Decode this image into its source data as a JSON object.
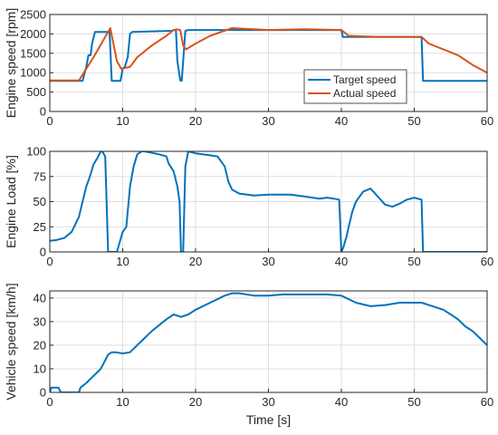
{
  "colors": {
    "target": "#0072BD",
    "actual": "#D95319",
    "grid": "#dfdfdf",
    "axis": "#262626"
  },
  "chart_data": [
    {
      "type": "line",
      "ylabel": "Engine speed [rpm]",
      "xlim": [
        0,
        60
      ],
      "ylim": [
        0,
        2500
      ],
      "xticks": [
        0,
        10,
        20,
        30,
        40,
        50,
        60
      ],
      "yticks": [
        0,
        500,
        1000,
        1500,
        2000,
        2500
      ],
      "grid": true,
      "legend": {
        "placement": "bottom-right-inside"
      },
      "series": [
        {
          "name": "Target speed",
          "color": "#0072BD",
          "x": [
            0,
            4.5,
            5,
            5.3,
            5.6,
            5.8,
            6.2,
            6.5,
            8.2,
            8.5,
            9.7,
            10,
            10.3,
            10.7,
            11,
            11.3,
            16.8,
            17,
            17.3,
            17.5,
            17.9,
            18.1,
            18.3,
            18.6,
            19,
            40,
            40.2,
            51,
            51.2,
            60
          ],
          "y": [
            790,
            790,
            1150,
            1450,
            1450,
            1750,
            2050,
            2050,
            2050,
            790,
            790,
            1100,
            1150,
            1400,
            2000,
            2050,
            2080,
            2100,
            2100,
            1300,
            800,
            790,
            1300,
            2080,
            2100,
            2100,
            1920,
            1920,
            790,
            790
          ]
        },
        {
          "name": "Actual speed",
          "color": "#D95319",
          "x": [
            0,
            4,
            6,
            8.3,
            9.2,
            9.8,
            11,
            12,
            14,
            16,
            17,
            17.4,
            17.9,
            18.3,
            18.7,
            20,
            22,
            25,
            30,
            35,
            40,
            41,
            45,
            48,
            51,
            52,
            54,
            56,
            58,
            60
          ],
          "y": [
            800,
            800,
            1400,
            2150,
            1300,
            1100,
            1150,
            1400,
            1700,
            1950,
            2100,
            2120,
            2100,
            1700,
            1600,
            1750,
            1950,
            2150,
            2100,
            2120,
            2100,
            1950,
            1920,
            1920,
            1920,
            1750,
            1600,
            1450,
            1200,
            1000
          ]
        }
      ]
    },
    {
      "type": "line",
      "ylabel": "Engine Load [%]",
      "xlim": [
        0,
        60
      ],
      "ylim": [
        0,
        100
      ],
      "xticks": [
        0,
        10,
        20,
        30,
        40,
        50,
        60
      ],
      "yticks": [
        0,
        25,
        50,
        75,
        100
      ],
      "grid": true,
      "series": [
        {
          "color": "#0072BD",
          "x": [
            0,
            1,
            2,
            3,
            4,
            4.5,
            5,
            5.5,
            6,
            6.5,
            7,
            7.2,
            7.6,
            8,
            8.3,
            9.2,
            9.6,
            10,
            10.5,
            11,
            11.5,
            12,
            12.6,
            13,
            15,
            16,
            16.3,
            17,
            17.5,
            17.8,
            18,
            18.3,
            18.6,
            19,
            20,
            22,
            23,
            24,
            24.5,
            25,
            26,
            28,
            30,
            33,
            35,
            37,
            38,
            39,
            39.7,
            40,
            40.3,
            40.7,
            41,
            41.5,
            42,
            43,
            44,
            45,
            46,
            47,
            48,
            49,
            50,
            51,
            51.2,
            60
          ],
          "y": [
            11,
            12,
            14,
            20,
            35,
            50,
            65,
            75,
            87,
            93,
            100,
            100,
            95,
            0,
            0,
            0,
            10,
            20,
            25,
            65,
            85,
            97,
            100,
            100,
            97,
            95,
            88,
            80,
            65,
            50,
            0,
            0,
            85,
            100,
            98,
            96,
            95,
            85,
            70,
            62,
            58,
            56,
            57,
            57,
            55,
            53,
            54,
            53,
            52,
            0,
            5,
            15,
            25,
            40,
            50,
            60,
            63,
            55,
            47,
            45,
            48,
            52,
            54,
            52,
            0,
            0
          ]
        }
      ]
    },
    {
      "type": "line",
      "xlabel": "Time [s]",
      "ylabel": "Vehicle speed [km/h]",
      "xlim": [
        0,
        60
      ],
      "ylim": [
        0,
        43
      ],
      "xticks": [
        0,
        10,
        20,
        30,
        40,
        50,
        60
      ],
      "yticks": [
        0,
        10,
        20,
        30,
        40
      ],
      "grid": true,
      "series": [
        {
          "color": "#0072BD",
          "x": [
            0,
            0.2,
            1.2,
            1.5,
            4,
            4.2,
            5,
            6,
            7,
            7.5,
            8,
            8.5,
            9,
            10,
            11,
            12,
            14,
            16,
            17,
            18,
            19,
            20,
            22,
            24,
            25,
            26,
            28,
            30,
            32,
            35,
            38,
            40,
            42,
            44,
            46,
            48,
            50,
            51,
            52,
            54,
            55,
            56,
            57,
            58,
            59,
            60
          ],
          "y": [
            0,
            2,
            2,
            0,
            0,
            2,
            4,
            7,
            10,
            13,
            16,
            17,
            17,
            16.5,
            17,
            20,
            26,
            31,
            33,
            32,
            33,
            35,
            38,
            41,
            42,
            42,
            41,
            41,
            41.5,
            41.5,
            41.5,
            41,
            38,
            36.5,
            37,
            38,
            38,
            38,
            37,
            35,
            33,
            31,
            28,
            26,
            23,
            20
          ]
        }
      ]
    }
  ]
}
